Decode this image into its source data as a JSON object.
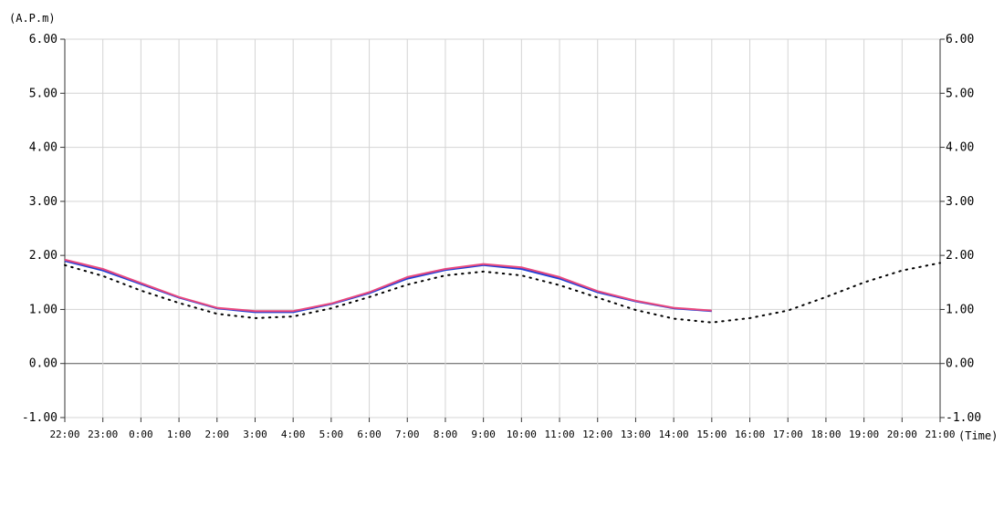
{
  "chart_data": {
    "type": "line",
    "ylabel": "(A.P.m)",
    "xlabel": "(Time)",
    "ylim": [
      -1.0,
      6.0
    ],
    "yticks": [
      "6.00",
      "5.00",
      "4.00",
      "3.00",
      "2.00",
      "1.00",
      "0.00",
      "-1.00"
    ],
    "ytick_values": [
      6,
      5,
      4,
      3,
      2,
      1,
      0,
      -1
    ],
    "categories": [
      "22:00",
      "23:00",
      "0:00",
      "1:00",
      "2:00",
      "3:00",
      "4:00",
      "5:00",
      "6:00",
      "7:00",
      "8:00",
      "9:00",
      "10:00",
      "11:00",
      "12:00",
      "13:00",
      "14:00",
      "15:00",
      "16:00",
      "17:00",
      "18:00",
      "19:00",
      "20:00",
      "21:00"
    ],
    "grid": true,
    "series": [
      {
        "color": "#1f3fd6",
        "dash": "solid",
        "values": [
          1.9,
          1.72,
          1.47,
          1.22,
          1.02,
          0.95,
          0.95,
          1.1,
          1.3,
          1.57,
          1.73,
          1.82,
          1.75,
          1.57,
          1.32,
          1.15,
          1.02,
          0.97,
          null,
          null,
          null,
          null,
          null,
          null
        ]
      },
      {
        "color": "#e8487e",
        "dash": "solid",
        "values": [
          1.92,
          1.75,
          1.49,
          1.23,
          1.03,
          0.97,
          0.97,
          1.11,
          1.32,
          1.6,
          1.75,
          1.84,
          1.78,
          1.6,
          1.34,
          1.16,
          1.03,
          0.98,
          null,
          null,
          null,
          null,
          null,
          null
        ]
      },
      {
        "color": "#000000",
        "dash": "dotted",
        "values": [
          1.82,
          1.62,
          1.35,
          1.12,
          0.92,
          0.84,
          0.87,
          1.02,
          1.23,
          1.46,
          1.63,
          1.7,
          1.63,
          1.45,
          1.22,
          0.99,
          0.83,
          0.76,
          0.84,
          0.98,
          1.23,
          1.5,
          1.72,
          1.86
        ]
      }
    ]
  }
}
